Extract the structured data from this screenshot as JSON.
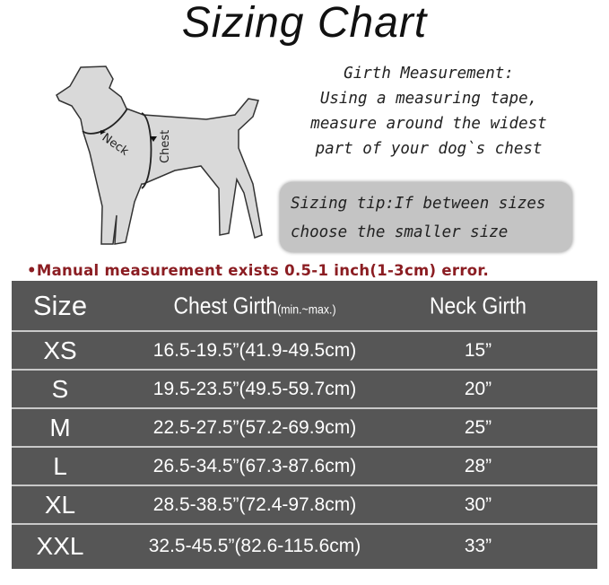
{
  "title": "Sizing Chart",
  "diagram": {
    "neck_label": "Neck",
    "chest_label": "Chest"
  },
  "girth_measurement": {
    "heading": "Girth Measurement:",
    "lines": [
      "Using a measuring tape,",
      "measure around the widest",
      "part of your dog`s chest"
    ]
  },
  "sizing_tip": {
    "line1": "Sizing tip:If between sizes",
    "line2": "choose the smaller size"
  },
  "note": "•Manual measurement exists 0.5-1 inch(1-3cm) error.",
  "colors": {
    "table_bg": "#565656",
    "note": "#8b1d22",
    "tip_bg": "#c4c4c4"
  },
  "table": {
    "headers": {
      "size": "Size",
      "chest": "Chest Girth",
      "chest_sub": "(min.~max.)",
      "neck": "Neck Girth"
    },
    "rows": [
      {
        "size": "XS",
        "chest": "16.5-19.5”(41.9-49.5cm)",
        "neck": "15”"
      },
      {
        "size": "S",
        "chest": "19.5-23.5”(49.5-59.7cm)",
        "neck": "20”"
      },
      {
        "size": "M",
        "chest": "22.5-27.5”(57.2-69.9cm)",
        "neck": "25”"
      },
      {
        "size": "L",
        "chest": "26.5-34.5”(67.3-87.6cm)",
        "neck": "28”"
      },
      {
        "size": "XL",
        "chest": "28.5-38.5”(72.4-97.8cm)",
        "neck": "30”"
      },
      {
        "size": "XXL",
        "chest": "32.5-45.5”(82.6-115.6cm)",
        "neck": "33”"
      }
    ]
  }
}
